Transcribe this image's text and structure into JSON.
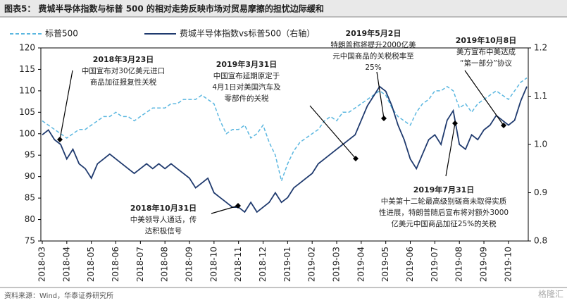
{
  "chart_data": {
    "type": "line",
    "title": "图表5： 费城半导体指数与标普 500 的相对走势反映市场对贸易摩擦的担忧边际缓和",
    "source": "资料来源：Wind，华泰证券研究所",
    "watermark": "格隆汇",
    "categories": [
      "2018-03",
      null,
      null,
      null,
      "2018-04",
      null,
      null,
      null,
      "2018-05",
      null,
      null,
      null,
      "2018-06",
      null,
      null,
      null,
      "2018-07",
      null,
      null,
      null,
      "2018-08",
      null,
      null,
      null,
      "2018-09",
      null,
      null,
      null,
      "2018-10",
      null,
      null,
      null,
      "2018-11",
      null,
      null,
      null,
      "2018-12",
      null,
      null,
      null,
      "2019-01",
      null,
      null,
      null,
      "2019-02",
      null,
      null,
      null,
      "2019-03",
      null,
      null,
      null,
      "2019-04",
      null,
      null,
      null,
      "2019-05",
      null,
      null,
      null,
      "2019-06",
      null,
      null,
      null,
      "2019-07",
      null,
      null,
      null,
      "2019-08",
      null,
      null,
      null,
      "2019-09",
      null,
      null,
      null,
      "2019-10",
      null,
      null,
      null
    ],
    "series": [
      {
        "name": "标普500",
        "color": "#5bb7e0",
        "line_style": "dashed",
        "axis": "y",
        "values": [
          103,
          102,
          101,
          100,
          99,
          100,
          101,
          101,
          102,
          103,
          104,
          104,
          105,
          104,
          104,
          103,
          104,
          105,
          106,
          106,
          106,
          107,
          107,
          108,
          108,
          108,
          109,
          108,
          107,
          103,
          100,
          101,
          101,
          102,
          99,
          100,
          102,
          98,
          95,
          89,
          93,
          96,
          98,
          99,
          100,
          101,
          103,
          104,
          103,
          105,
          105,
          106,
          107,
          108,
          109,
          110,
          109,
          106,
          104,
          103,
          102,
          105,
          107,
          108,
          110,
          110,
          111,
          110,
          106,
          107,
          105,
          107,
          108,
          109,
          110,
          109,
          108,
          110,
          112,
          113
        ]
      },
      {
        "name": "费城半导体指数vs标普500（右轴）",
        "color": "#1f3a6e",
        "line_style": "solid",
        "axis": "y2",
        "values": [
          1.02,
          1.03,
          1.01,
          1.0,
          0.97,
          0.99,
          0.96,
          0.95,
          0.93,
          0.96,
          0.97,
          0.98,
          0.97,
          0.96,
          0.95,
          0.94,
          0.95,
          0.96,
          0.95,
          0.96,
          0.95,
          0.96,
          0.95,
          0.94,
          0.93,
          0.91,
          0.92,
          0.93,
          0.9,
          0.89,
          0.88,
          0.87,
          0.87,
          0.86,
          0.88,
          0.86,
          0.87,
          0.88,
          0.9,
          0.88,
          0.89,
          0.91,
          0.92,
          0.93,
          0.94,
          0.96,
          0.97,
          0.98,
          0.99,
          1.0,
          1.01,
          1.02,
          1.05,
          1.08,
          1.1,
          1.12,
          1.11,
          1.08,
          1.04,
          1.01,
          0.97,
          0.95,
          0.98,
          1.01,
          1.02,
          1.0,
          1.05,
          1.07,
          1.0,
          0.99,
          1.02,
          1.01,
          1.03,
          1.04,
          1.06,
          1.05,
          1.04,
          1.05,
          1.09,
          1.12
        ]
      }
    ],
    "ylim": [
      75,
      120
    ],
    "yticks": [
      75,
      80,
      85,
      90,
      95,
      100,
      105,
      110,
      115,
      120
    ],
    "y2lim": [
      0.8,
      1.2
    ],
    "y2ticks": [
      0.8,
      0.9,
      {
        "value": 1,
        "label": "1.0"
      },
      1.1,
      1.2
    ],
    "annotations": [
      {
        "date": "2018年3月23日",
        "lines": [
          "中国宣布对30亿美元进口",
          "商品加征报复性关税"
        ]
      },
      {
        "date": "2019年3月31日",
        "lines": [
          "中国宣布延期原定于",
          "4月1日对美国汽车及",
          "零部件的关税"
        ]
      },
      {
        "date": "2019年5月2日",
        "lines": [
          "特朗普称将提升2000亿美",
          "元中国商品的关税税率至",
          "25%"
        ]
      },
      {
        "date": "2019年10月8日",
        "lines": [
          "美方宣布中美达成",
          "“第一部分”协议"
        ]
      },
      {
        "date": "2018年10月31日",
        "lines": [
          "中美领导人通话，传",
          "达积极信号"
        ]
      },
      {
        "date": "2019年7月31日",
        "lines": [
          "中美第十二轮最高级别磋商未取得实质",
          "性进展，特朗普随后宣布将对额外3000",
          "亿美元中国商品加征25%的关税"
        ]
      }
    ]
  }
}
